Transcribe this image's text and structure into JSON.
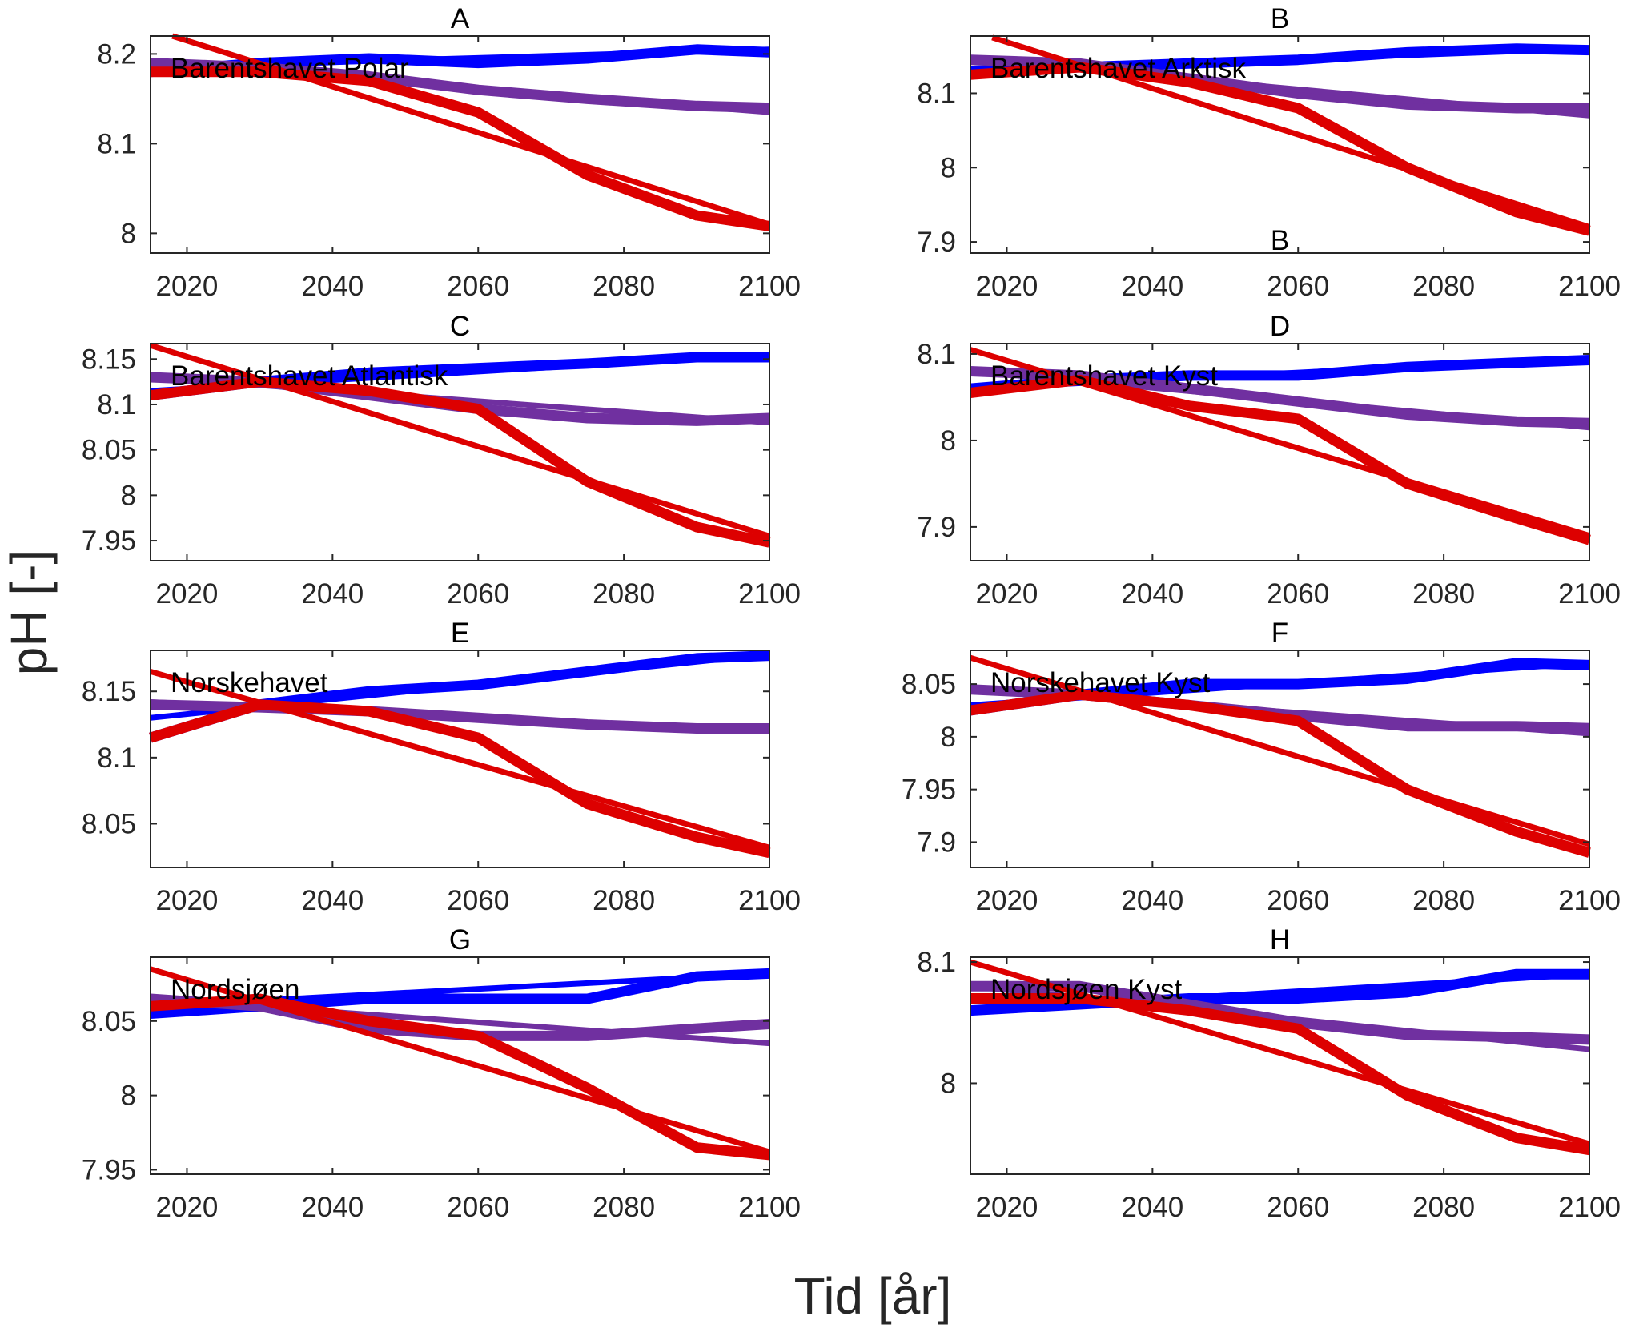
{
  "chart_data": {
    "type": "line",
    "xlabel": "Tid [år]",
    "ylabel": "pH [-]",
    "xlim": [
      2015,
      2100
    ],
    "xticks": [
      2020,
      2040,
      2060,
      2080,
      2100
    ],
    "grid": false,
    "colors": {
      "blue": "#0000ff",
      "purple": "#7030a0",
      "red": "#dd0000"
    },
    "x": [
      2015,
      2030,
      2045,
      2060,
      2075,
      2090,
      2100
    ],
    "stray_label": "B",
    "panels": [
      {
        "title": "A",
        "label": "Barentshavet Polar",
        "ylim": [
          7.978,
          8.22
        ],
        "yticks": [
          8,
          8.1,
          8.2
        ],
        "series": [
          {
            "color": "blue",
            "smooth": [
              8.18,
              8.19,
              8.195,
              8.19,
              8.195,
              8.205,
              8.202
            ],
            "trend": [
              [
                2015,
                8.185
              ],
              [
                2100,
                8.205
              ]
            ]
          },
          {
            "color": "purple",
            "smooth": [
              8.19,
              8.185,
              8.175,
              8.16,
              8.15,
              8.142,
              8.14
            ],
            "trend": [
              [
                2015,
                8.19
              ],
              [
                2100,
                8.135
              ]
            ]
          },
          {
            "color": "red",
            "smooth": [
              8.18,
              8.18,
              8.17,
              8.135,
              8.065,
              8.02,
              8.008
            ],
            "trend": [
              [
                2018,
                8.22
              ],
              [
                2100,
                8.01
              ]
            ]
          }
        ]
      },
      {
        "title": "B",
        "label": "Barentshavet Arktisk",
        "ylim": [
          7.885,
          8.177
        ],
        "yticks": [
          7.9,
          8,
          8.1
        ],
        "series": [
          {
            "color": "blue",
            "smooth": [
              8.13,
              8.135,
              8.14,
              8.145,
              8.155,
              8.16,
              8.158
            ],
            "trend": [
              [
                2015,
                8.13
              ],
              [
                2100,
                8.16
              ]
            ]
          },
          {
            "color": "purple",
            "smooth": [
              8.145,
              8.14,
              8.12,
              8.1,
              8.085,
              8.08,
              8.08
            ],
            "trend": [
              [
                2015,
                8.145
              ],
              [
                2100,
                8.07
              ]
            ]
          },
          {
            "color": "red",
            "smooth": [
              8.125,
              8.135,
              8.115,
              8.08,
              8.0,
              7.94,
              7.915
            ],
            "trend": [
              [
                2018,
                8.175
              ],
              [
                2100,
                7.92
              ]
            ]
          }
        ]
      },
      {
        "title": "C",
        "label": "Barentshavet Atlantisk",
        "ylim": [
          7.928,
          8.167
        ],
        "yticks": [
          7.95,
          8,
          8.05,
          8.1,
          8.15
        ],
        "series": [
          {
            "color": "blue",
            "smooth": [
              8.11,
              8.125,
              8.135,
              8.14,
              8.145,
              8.152,
              8.152
            ],
            "trend": [
              [
                2015,
                8.115
              ],
              [
                2100,
                8.155
              ]
            ]
          },
          {
            "color": "purple",
            "smooth": [
              8.13,
              8.125,
              8.11,
              8.095,
              8.085,
              8.082,
              8.085
            ],
            "trend": [
              [
                2015,
                8.13
              ],
              [
                2100,
                8.08
              ]
            ]
          },
          {
            "color": "red",
            "smooth": [
              8.11,
              8.125,
              8.115,
              8.095,
              8.015,
              7.965,
              7.948
            ],
            "trend": [
              [
                2015,
                8.165
              ],
              [
                2100,
                7.955
              ]
            ]
          }
        ]
      },
      {
        "title": "D",
        "label": "Barentshavet Kyst",
        "ylim": [
          7.861,
          8.112
        ],
        "yticks": [
          7.9,
          8,
          8.1
        ],
        "series": [
          {
            "color": "blue",
            "smooth": [
              8.06,
              8.07,
              8.075,
              8.075,
              8.085,
              8.09,
              8.093
            ],
            "trend": [
              [
                2015,
                8.06
              ],
              [
                2100,
                8.095
              ]
            ]
          },
          {
            "color": "purple",
            "smooth": [
              8.08,
              8.075,
              8.06,
              8.045,
              8.03,
              8.022,
              8.02
            ],
            "trend": [
              [
                2015,
                8.08
              ],
              [
                2100,
                8.015
              ]
            ]
          },
          {
            "color": "red",
            "smooth": [
              8.055,
              8.07,
              8.04,
              8.025,
              7.95,
              7.91,
              7.885
            ],
            "trend": [
              [
                2015,
                8.105
              ],
              [
                2100,
                7.89
              ]
            ]
          }
        ]
      },
      {
        "title": "E",
        "label": "Norskehavet",
        "ylim": [
          8.017,
          8.181
        ],
        "yticks": [
          8.05,
          8.1,
          8.15
        ],
        "series": [
          {
            "color": "blue",
            "smooth": [
              8.115,
              8.14,
              8.15,
              8.155,
              8.165,
              8.175,
              8.177
            ],
            "trend": [
              [
                2015,
                8.13
              ],
              [
                2100,
                8.178
              ]
            ]
          },
          {
            "color": "purple",
            "smooth": [
              8.14,
              8.138,
              8.135,
              8.13,
              8.125,
              8.122,
              8.122
            ],
            "trend": [
              [
                2015,
                8.142
              ],
              [
                2100,
                8.12
              ]
            ]
          },
          {
            "color": "red",
            "smooth": [
              8.115,
              8.14,
              8.135,
              8.115,
              8.065,
              8.04,
              8.028
            ],
            "trend": [
              [
                2015,
                8.165
              ],
              [
                2100,
                8.032
              ]
            ]
          }
        ]
      },
      {
        "title": "F",
        "label": "Norskehavet Kyst",
        "ylim": [
          7.876,
          8.082
        ],
        "yticks": [
          7.9,
          7.95,
          8,
          8.05
        ],
        "series": [
          {
            "color": "blue",
            "smooth": [
              8.025,
              8.04,
              8.05,
              8.05,
              8.055,
              8.07,
              8.068
            ],
            "trend": [
              [
                2015,
                8.03
              ],
              [
                2100,
                8.07
              ]
            ]
          },
          {
            "color": "purple",
            "smooth": [
              8.045,
              8.04,
              8.03,
              8.02,
              8.01,
              8.01,
              8.008
            ],
            "trend": [
              [
                2015,
                8.045
              ],
              [
                2100,
                8.003
              ]
            ]
          },
          {
            "color": "red",
            "smooth": [
              8.025,
              8.04,
              8.03,
              8.015,
              7.95,
              7.91,
              7.89
            ],
            "trend": [
              [
                2015,
                8.075
              ],
              [
                2100,
                7.898
              ]
            ]
          }
        ]
      },
      {
        "title": "G",
        "label": "Nordsjøen",
        "ylim": [
          7.947,
          8.093
        ],
        "yticks": [
          7.95,
          8,
          8.05
        ],
        "series": [
          {
            "color": "blue",
            "smooth": [
              8.055,
              8.06,
              8.065,
              8.065,
              8.065,
              8.08,
              8.082
            ],
            "trend": [
              [
                2015,
                8.06
              ],
              [
                2100,
                8.082
              ]
            ]
          },
          {
            "color": "purple",
            "smooth": [
              8.065,
              8.06,
              8.045,
              8.04,
              8.04,
              8.045,
              8.048
            ],
            "trend": [
              [
                2015,
                8.065
              ],
              [
                2100,
                8.035
              ]
            ]
          },
          {
            "color": "red",
            "smooth": [
              8.06,
              8.065,
              8.05,
              8.04,
              8.005,
              7.965,
              7.96
            ],
            "trend": [
              [
                2015,
                8.085
              ],
              [
                2100,
                7.962
              ]
            ]
          }
        ]
      },
      {
        "title": "H",
        "label": "Nordsjøen Kyst",
        "ylim": [
          7.925,
          8.104
        ],
        "yticks": [
          8,
          8.1
        ],
        "series": [
          {
            "color": "blue",
            "smooth": [
              8.06,
              8.065,
              8.07,
              8.07,
              8.075,
              8.09,
              8.09
            ],
            "trend": [
              [
                2015,
                8.06
              ],
              [
                2100,
                8.09
              ]
            ]
          },
          {
            "color": "purple",
            "smooth": [
              8.08,
              8.08,
              8.065,
              8.05,
              8.04,
              8.038,
              8.036
            ],
            "trend": [
              [
                2015,
                8.08
              ],
              [
                2100,
                8.028
              ]
            ]
          },
          {
            "color": "red",
            "smooth": [
              8.07,
              8.07,
              8.06,
              8.045,
              7.99,
              7.955,
              7.945
            ],
            "trend": [
              [
                2015,
                8.1
              ],
              [
                2100,
                7.95
              ]
            ]
          }
        ]
      }
    ]
  }
}
